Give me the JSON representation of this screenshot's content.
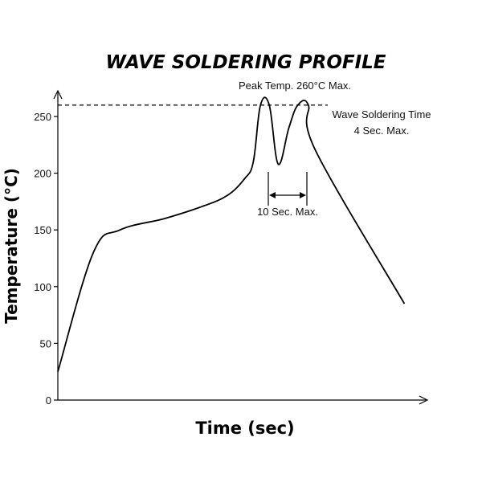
{
  "chart_data": {
    "type": "line",
    "title": "WAVE SOLDERING PROFILE",
    "xlabel": "Time (sec)",
    "ylabel": "Temperature (°C)",
    "ylim": [
      0,
      260
    ],
    "yticks": [
      0,
      50,
      100,
      150,
      200,
      250
    ],
    "grid": false,
    "annotations": {
      "peak": "Peak Temp. 260°C Max.",
      "wave_time_line1": "Wave Soldering Time",
      "wave_time_line2": "4 Sec. Max.",
      "interval": "10 Sec. Max."
    },
    "series": [
      {
        "values": [
          [
            0,
            25
          ],
          [
            20,
            130
          ],
          [
            35,
            150
          ],
          [
            60,
            160
          ],
          [
            80,
            170
          ],
          [
            95,
            180
          ],
          [
            105,
            195
          ],
          [
            110,
            210
          ],
          [
            114,
            260
          ],
          [
            119,
            260
          ],
          [
            124,
            208
          ],
          [
            130,
            240
          ],
          [
            135,
            260
          ],
          [
            141,
            260
          ],
          [
            145,
            220
          ],
          [
            195,
            85
          ]
        ]
      }
    ]
  }
}
